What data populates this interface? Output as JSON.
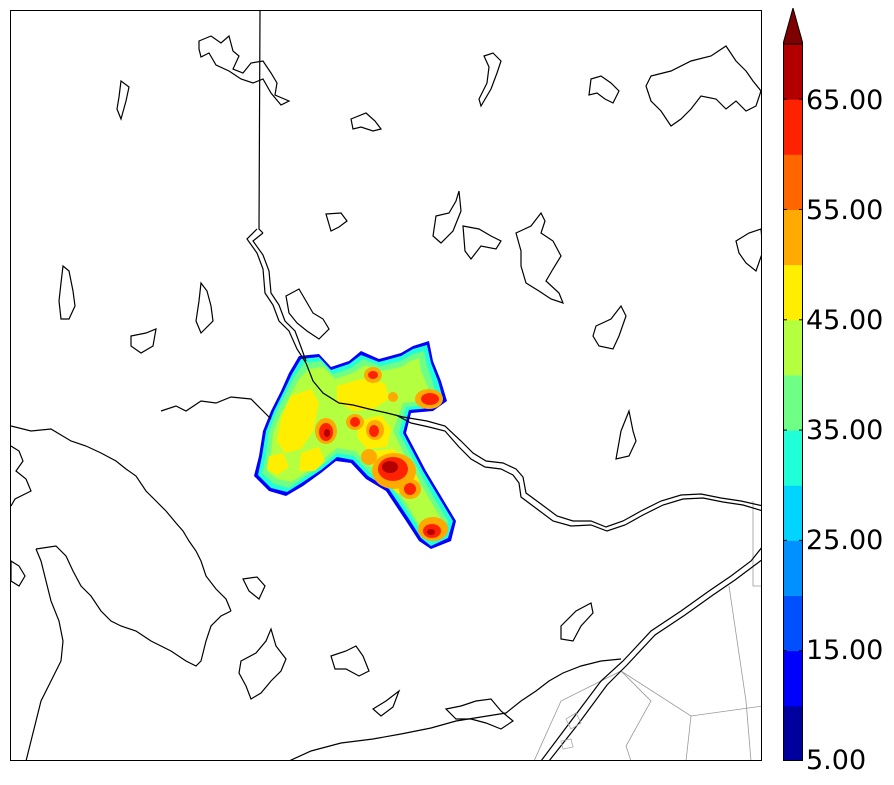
{
  "map": {
    "colorbar": {
      "labels": [
        "65.00",
        "55.00",
        "45.00",
        "35.00",
        "25.00",
        "15.00",
        "5.00"
      ],
      "levels": [
        5,
        10,
        15,
        20,
        25,
        30,
        35,
        40,
        45,
        50,
        55,
        60,
        65,
        70
      ],
      "extend": "max",
      "colors": [
        "#00009f",
        "#0000ff",
        "#0050ff",
        "#0090ff",
        "#00d4ff",
        "#20ffd8",
        "#70ff86",
        "#b4ff40",
        "#ffee00",
        "#ffaa00",
        "#ff6600",
        "#ff2200",
        "#b20000",
        "#7f0000"
      ]
    },
    "field_colors": {
      "edge": "#0000ff",
      "low": "#20ffd8",
      "mid": "#70ff86",
      "main": "#b4ff40",
      "high": "#ffee00",
      "peak1": "#ffaa00",
      "peak2": "#ff2200",
      "peak3": "#b20000"
    }
  }
}
